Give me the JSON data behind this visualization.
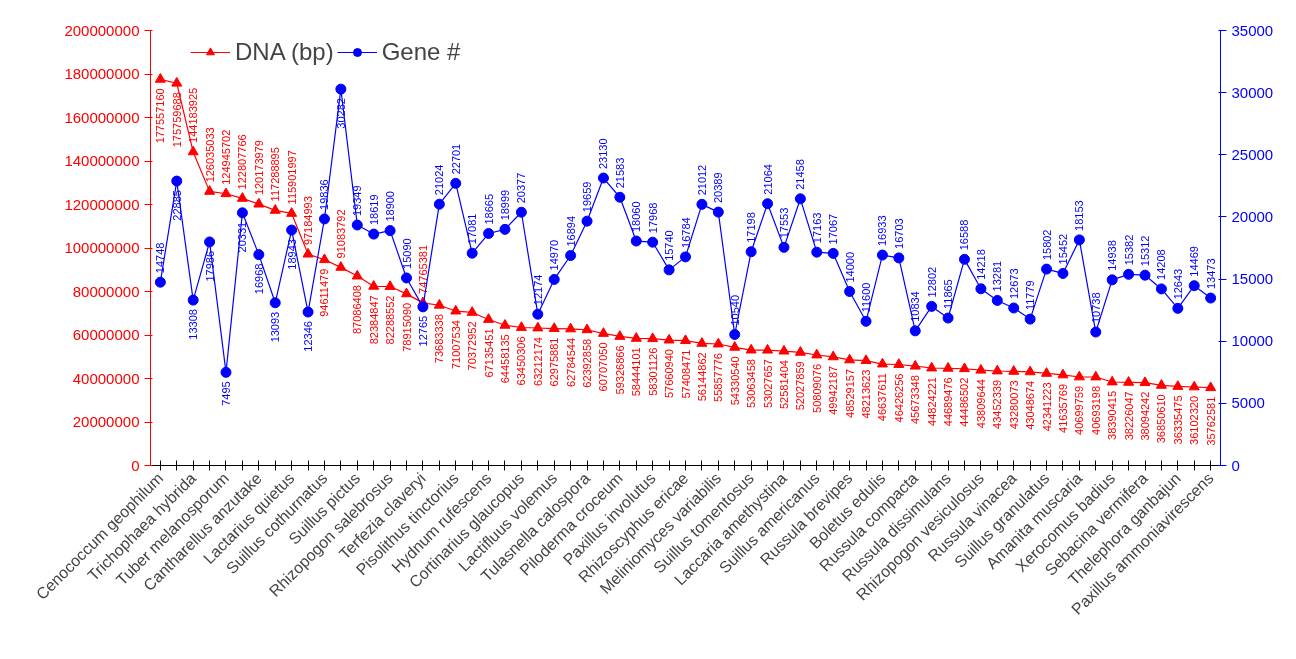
{
  "chart_data": {
    "type": "line",
    "categories": [
      "Cenococcum geophilum",
      null,
      "Trichophaea hybrida",
      null,
      "Tuber melanosporum",
      null,
      "Cantharellus anzutake",
      null,
      "Lactarius quietus",
      null,
      "Suillus cothurnatus",
      null,
      "Suillus pictus",
      null,
      "Rhizopogon salebrosus",
      null,
      "Terfezia claveryi",
      null,
      "Pisolithus tinctorius",
      null,
      "Hydnum rufescens",
      null,
      "Cortinarius glaucopus",
      null,
      "Lactifluus volemus",
      null,
      "Tulasnella calospora",
      null,
      "Piloderma croceum",
      null,
      "Paxillus involutus",
      null,
      "Rhizoscyphus ericae",
      null,
      "Meliniomyces variabilis",
      null,
      "Suillus tomentosus",
      null,
      "Laccaria amethystina",
      null,
      "Suillus americanus",
      null,
      "Russula brevipes",
      null,
      "Boletus edulis",
      null,
      "Russula compacta",
      null,
      "Russula dissimulans",
      null,
      "Rhizopogon vesiculosus",
      null,
      "Russula vinacea",
      null,
      "Suillus granulatus",
      null,
      "Amanita muscaria",
      null,
      "Xerocomus badius",
      null,
      "Sebacina vermifera",
      null,
      "Thelephora ganbajun",
      null,
      "Paxillus ammoniavirescens"
    ],
    "series": [
      {
        "name": "DNA (bp)",
        "color": "#ff0000",
        "marker": "triangle",
        "values": [
          177557160,
          175759688,
          144183925,
          126035033,
          124945702,
          122807766,
          120173979,
          117288895,
          115901997,
          97184993,
          94611479,
          91083792,
          87086408,
          82384847,
          82288552,
          78915090,
          74765381,
          73683338,
          71007534,
          70372952,
          67135451,
          64458135,
          63450306,
          63212174,
          62975881,
          62784544,
          62392858,
          60707050,
          59326866,
          58444101,
          58301126,
          57660940,
          57408471,
          56144862,
          55857776,
          54330540,
          53063458,
          53027657,
          52581404,
          52027859,
          50809076,
          49942187,
          48529157,
          48213623,
          46637611,
          46426256,
          45673348,
          44824221,
          44689476,
          44486502,
          43809644,
          43452339,
          43280073,
          43048674,
          42341223,
          41635769,
          40699759,
          40693198,
          38390415,
          38226047,
          38094242,
          36850610,
          36335475,
          36102320,
          35762581
        ]
      },
      {
        "name": "Gene #",
        "color": "#0000ff",
        "marker": "circle",
        "axis": "y2",
        "values": [
          14748,
          22885,
          13308,
          17986,
          7495,
          20331,
          16968,
          13093,
          18943,
          12346,
          19836,
          30282,
          19349,
          18619,
          18900,
          15090,
          12765,
          21024,
          22701,
          17081,
          18665,
          18999,
          20377,
          12174,
          14970,
          16894,
          19659,
          23130,
          21583,
          18060,
          17968,
          15740,
          16784,
          21012,
          20389,
          10540,
          17198,
          21064,
          17553,
          21458,
          17163,
          17067,
          14000,
          11600,
          16933,
          16703,
          10834,
          12802,
          11865,
          16588,
          14218,
          13281,
          12673,
          11779,
          15802,
          15452,
          18153,
          10738,
          14938,
          15382,
          15312,
          14208,
          12643,
          14469,
          13473
        ]
      }
    ],
    "ylim": [
      0,
      200000000
    ],
    "yticks": [
      0,
      20000000,
      40000000,
      60000000,
      80000000,
      100000000,
      120000000,
      140000000,
      160000000,
      180000000,
      200000000
    ],
    "y2lim": [
      0,
      35000
    ],
    "y2ticks": [
      0,
      5000,
      10000,
      15000,
      20000,
      25000,
      30000,
      35000
    ],
    "data_labels": true,
    "legend": "top left",
    "grid": false
  }
}
